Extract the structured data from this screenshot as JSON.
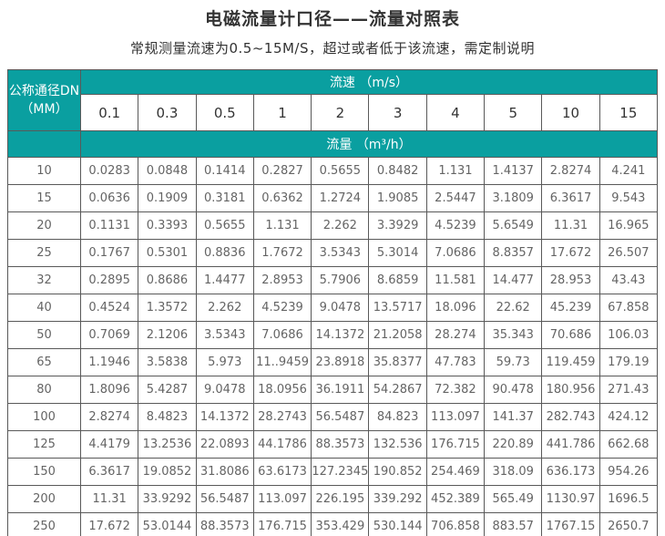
{
  "title": "电磁流量计口径——流量对照表",
  "subtitle": "常规测量流速为0.5~15M/S，超过或者低于该流速，需定制说明",
  "colors": {
    "header_teal": "#0a9fa0",
    "border": "#595959",
    "body_text": "#646464",
    "title_text": "#333333"
  },
  "table": {
    "corner_header_line1": "公称通径DN",
    "corner_header_line2": "（MM）",
    "velocity_header": "流速 （m/s）",
    "velocity_values": [
      "0.1",
      "0.3",
      "0.5",
      "1",
      "2",
      "3",
      "4",
      "5",
      "10",
      "15"
    ],
    "flow_header": "流量 （m³/h）",
    "rows": [
      {
        "dn": "10",
        "values": [
          "0.0283",
          "0.0848",
          "0.1414",
          "0.2827",
          "0.5655",
          "0.8482",
          "1.131",
          "1.4137",
          "2.8274",
          "4.241"
        ]
      },
      {
        "dn": "15",
        "values": [
          "0.0636",
          "0.1909",
          "0.3181",
          "0.6362",
          "1.2724",
          "1.9085",
          "2.5447",
          "3.1809",
          "6.3617",
          "9.543"
        ]
      },
      {
        "dn": "20",
        "values": [
          "0.1131",
          "0.3393",
          "0.5655",
          "1.131",
          "2.262",
          "3.3929",
          "4.5239",
          "5.6549",
          "11.31",
          "16.965"
        ]
      },
      {
        "dn": "25",
        "values": [
          "0.1767",
          "0.5301",
          "0.8836",
          "1.7672",
          "3.5343",
          "5.3014",
          "7.0686",
          "8.8357",
          "17.672",
          "26.507"
        ]
      },
      {
        "dn": "32",
        "values": [
          "0.2895",
          "0.8686",
          "1.4477",
          "2.8953",
          "5.7906",
          "8.6859",
          "11.581",
          "14.477",
          "28.953",
          "43.43"
        ]
      },
      {
        "dn": "40",
        "values": [
          "0.4524",
          "1.3572",
          "2.262",
          "4.5239",
          "9.0478",
          "13.5717",
          "18.096",
          "22.62",
          "45.239",
          "67.858"
        ]
      },
      {
        "dn": "50",
        "values": [
          "0.7069",
          "2.1206",
          "3.5343",
          "7.0686",
          "14.1372",
          "21.2058",
          "28.274",
          "35.343",
          "70.686",
          "106.03"
        ]
      },
      {
        "dn": "65",
        "values": [
          "1.1946",
          "3.5838",
          "5.973",
          "11..9459",
          "23.8918",
          "35.8377",
          "47.783",
          "59.73",
          "119.459",
          "179.19"
        ]
      },
      {
        "dn": "80",
        "values": [
          "1.8096",
          "5.4287",
          "9.0478",
          "18.0956",
          "36.1911",
          "54.2867",
          "72.382",
          "90.478",
          "180.956",
          "271.43"
        ]
      },
      {
        "dn": "100",
        "values": [
          "2.8274",
          "8.4823",
          "14.1372",
          "28.2743",
          "56.5487",
          "84.823",
          "113.097",
          "141.37",
          "282.743",
          "424.12"
        ]
      },
      {
        "dn": "125",
        "values": [
          "4.4179",
          "13.2536",
          "22.0893",
          "44.1786",
          "88.3573",
          "132.536",
          "176.715",
          "220.89",
          "441.786",
          "662.68"
        ]
      },
      {
        "dn": "150",
        "values": [
          "6.3617",
          "19.0852",
          "31.8086",
          "63.6173",
          "127.2345",
          "190.852",
          "254.469",
          "318.09",
          "636.173",
          "954.26"
        ]
      },
      {
        "dn": "200",
        "values": [
          "11.31",
          "33.9292",
          "56.5487",
          "113.097",
          "226.195",
          "339.292",
          "452.389",
          "565.49",
          "1130.97",
          "1696.5"
        ]
      },
      {
        "dn": "250",
        "values": [
          "17.672",
          "53.0144",
          "88.3573",
          "176.715",
          "353.429",
          "530.144",
          "706.858",
          "883.57",
          "1767.15",
          "2650.7"
        ]
      }
    ]
  }
}
